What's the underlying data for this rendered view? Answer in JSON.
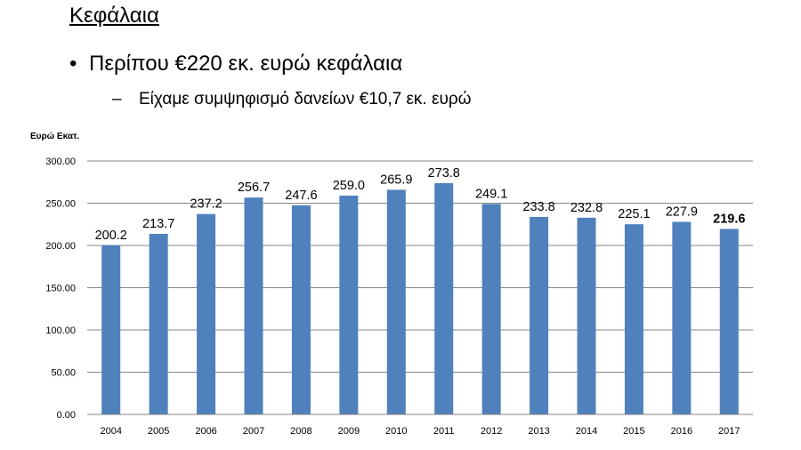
{
  "slide": {
    "title": "Κεφάλαια",
    "bullet": "Περίπου €220 εκ. ευρώ κεφάλαια",
    "sub_bullet": "Είχαμε συμψηφισμό δανείων €10,7 εκ. ευρώ",
    "bullet_marker": "•",
    "sub_marker": "–"
  },
  "chart_data": {
    "type": "bar",
    "ylabel": "Ευρώ Εκατ.",
    "categories": [
      "2004",
      "2005",
      "2006",
      "2007",
      "2008",
      "2009",
      "2010",
      "2011",
      "2012",
      "2013",
      "2014",
      "2015",
      "2016",
      "2017"
    ],
    "values": [
      200.2,
      213.7,
      237.2,
      256.7,
      247.6,
      259.0,
      265.9,
      273.8,
      249.1,
      233.8,
      232.8,
      225.1,
      227.9,
      219.6
    ],
    "value_labels": [
      "200.2",
      "213.7",
      "237.2",
      "256.7",
      "247.6",
      "259.0",
      "265.9",
      "273.8",
      "249.1",
      "233.8",
      "232.8",
      "225.1",
      "227.9",
      "219.6"
    ],
    "ylim": [
      0,
      300
    ],
    "yticks": [
      "0.00",
      "50.00",
      "100.00",
      "150.00",
      "200.00",
      "250.00",
      "300.00"
    ],
    "grid": true,
    "bar_color": "#4f81bd",
    "highlighted_label_index": 13
  }
}
